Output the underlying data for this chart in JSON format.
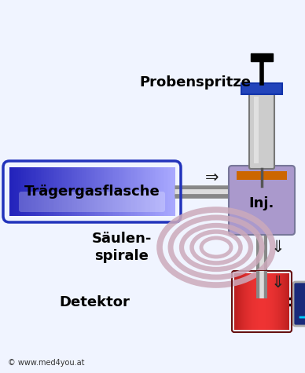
{
  "bg_color": "#f0f4ff",
  "label_traeger": "Trägergasflasche",
  "label_inj": "Inj.",
  "label_probe": "Probenspritze",
  "label_saeule": "Säulen-\nspirale",
  "label_detektor": "Detektor",
  "label_copyright": "© www.med4you.at",
  "traeger_color_left": "#2222bb",
  "traeger_color_right": "#aaaaff",
  "inj_color": "#aa99cc",
  "pipe_color_dark": "#888888",
  "pipe_color_light": "#dddddd",
  "coil_color": "#ccaabb",
  "detector_color_dark": "#991111",
  "detector_color_light": "#ee3333",
  "screen_color": "#1a2a7a",
  "screen_border": "#aaaaaa",
  "syringe_body_color": "#cccccc",
  "syringe_flange_color": "#2244bb",
  "orange_band_color": "#cc6600",
  "signal_color": "#00ccff",
  "arrow_color": "#222222"
}
